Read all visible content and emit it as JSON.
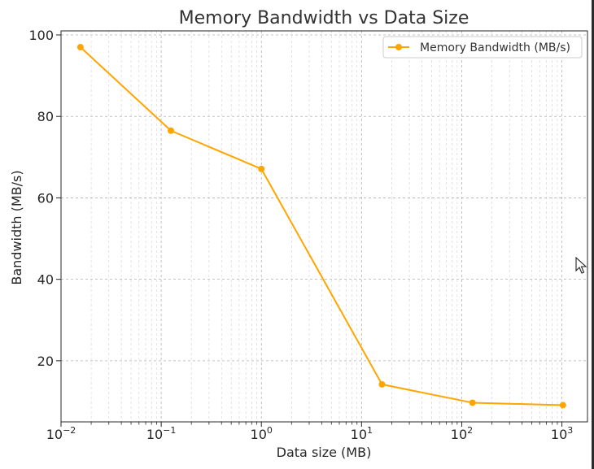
{
  "chart_data": {
    "type": "line",
    "title": "Memory Bandwidth vs Data Size",
    "xlabel": "Data size (MB)",
    "ylabel": "Bandwidth (MB/s)",
    "xscale": "log",
    "xlim": [
      0.01,
      1800
    ],
    "ylim": [
      5,
      101
    ],
    "grid": true,
    "legend_position": "top-right",
    "color": "#FFA500",
    "x_ticks": [
      {
        "value": 0.01,
        "base": "10",
        "exp": "−2"
      },
      {
        "value": 0.1,
        "base": "10",
        "exp": "−1"
      },
      {
        "value": 1,
        "base": "10",
        "exp": "0"
      },
      {
        "value": 10,
        "base": "10",
        "exp": "1"
      },
      {
        "value": 100,
        "base": "10",
        "exp": "2"
      },
      {
        "value": 1000,
        "base": "10",
        "exp": "3"
      }
    ],
    "y_ticks": [
      {
        "value": 20,
        "label": "20"
      },
      {
        "value": 40,
        "label": "40"
      },
      {
        "value": 60,
        "label": "60"
      },
      {
        "value": 80,
        "label": "80"
      },
      {
        "value": 100,
        "label": "100"
      }
    ],
    "series": [
      {
        "name": "Memory Bandwidth (MB/s)",
        "x": [
          0.015625,
          0.125,
          1,
          16,
          128,
          1024
        ],
        "y": [
          97,
          76.5,
          67.1,
          14.2,
          9.7,
          9.1
        ]
      }
    ]
  }
}
